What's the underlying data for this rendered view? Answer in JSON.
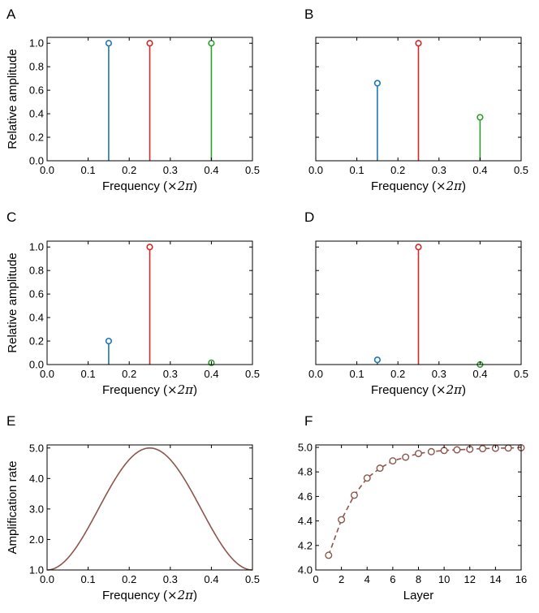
{
  "chart_data": [
    {
      "panel": "A",
      "type": "stem",
      "xlabel_prefix": "Frequency (",
      "xlabel_math": "×2π",
      "xlabel_suffix": ")",
      "ylabel": "Relative amplitude",
      "xlim": [
        0,
        0.5
      ],
      "ylim": [
        0,
        1.05
      ],
      "xticks": [
        "0.0",
        "0.1",
        "0.2",
        "0.3",
        "0.4",
        "0.5"
      ],
      "yticks": [
        "0.0",
        "0.2",
        "0.4",
        "0.6",
        "0.8",
        "1.0"
      ],
      "series": [
        {
          "name": "blue",
          "color": "#1f77b4",
          "x": 0.15,
          "y": 1.0
        },
        {
          "name": "red",
          "color": "#d62728",
          "x": 0.25,
          "y": 1.0
        },
        {
          "name": "green",
          "color": "#2ca02c",
          "x": 0.4,
          "y": 1.0
        }
      ]
    },
    {
      "panel": "B",
      "type": "stem",
      "xlabel_prefix": "Frequency (",
      "xlabel_math": "×2π",
      "xlabel_suffix": ")",
      "ylabel": "",
      "xlim": [
        0,
        0.5
      ],
      "ylim": [
        0,
        1.05
      ],
      "xticks": [
        "0.0",
        "0.1",
        "0.2",
        "0.3",
        "0.4",
        "0.5"
      ],
      "yticks": [],
      "series": [
        {
          "name": "blue",
          "color": "#1f77b4",
          "x": 0.15,
          "y": 0.66
        },
        {
          "name": "red",
          "color": "#d62728",
          "x": 0.25,
          "y": 1.0
        },
        {
          "name": "green",
          "color": "#2ca02c",
          "x": 0.4,
          "y": 0.37
        }
      ]
    },
    {
      "panel": "C",
      "type": "stem",
      "xlabel_prefix": "Frequency (",
      "xlabel_math": "×2π",
      "xlabel_suffix": ")",
      "ylabel": "Relative amplitude",
      "xlim": [
        0,
        0.5
      ],
      "ylim": [
        0,
        1.05
      ],
      "xticks": [
        "0.0",
        "0.1",
        "0.2",
        "0.3",
        "0.4",
        "0.5"
      ],
      "yticks": [
        "0.0",
        "0.2",
        "0.4",
        "0.6",
        "0.8",
        "1.0"
      ],
      "series": [
        {
          "name": "blue",
          "color": "#1f77b4",
          "x": 0.15,
          "y": 0.2
        },
        {
          "name": "red",
          "color": "#d62728",
          "x": 0.25,
          "y": 1.0
        },
        {
          "name": "green",
          "color": "#2ca02c",
          "x": 0.4,
          "y": 0.015
        }
      ]
    },
    {
      "panel": "D",
      "type": "stem",
      "xlabel_prefix": "Frequency (",
      "xlabel_math": "×2π",
      "xlabel_suffix": ")",
      "ylabel": "",
      "xlim": [
        0,
        0.5
      ],
      "ylim": [
        0,
        1.05
      ],
      "xticks": [
        "0.0",
        "0.1",
        "0.2",
        "0.3",
        "0.4",
        "0.5"
      ],
      "yticks": [],
      "series": [
        {
          "name": "blue",
          "color": "#1f77b4",
          "x": 0.15,
          "y": 0.04
        },
        {
          "name": "red",
          "color": "#d62728",
          "x": 0.25,
          "y": 1.0
        },
        {
          "name": "green",
          "color": "#2ca02c",
          "x": 0.4,
          "y": 0.0
        }
      ]
    },
    {
      "panel": "E",
      "type": "line",
      "xlabel_prefix": "Frequency (",
      "xlabel_math": "×2π",
      "xlabel_suffix": ")",
      "ylabel": "Amplification rate",
      "xlim": [
        0,
        0.5
      ],
      "ylim": [
        1.0,
        5.1
      ],
      "xticks": [
        "0.0",
        "0.1",
        "0.2",
        "0.3",
        "0.4",
        "0.5"
      ],
      "yticks": [
        "1.0",
        "2.0",
        "3.0",
        "4.0",
        "5.0"
      ],
      "color": "#8c564b",
      "function": "3 - 2*cos(4*pi*f)",
      "curve_min": 1.0,
      "curve_max": 5.0
    },
    {
      "panel": "F",
      "type": "line",
      "xlabel_prefix": "Layer",
      "xlabel_math": "",
      "xlabel_suffix": "",
      "ylabel": "",
      "xlim": [
        0,
        16
      ],
      "ylim": [
        4.0,
        5.02
      ],
      "xticks": [
        "0",
        "2",
        "4",
        "6",
        "8",
        "10",
        "12",
        "14",
        "16"
      ],
      "yticks": [
        "4.0",
        "4.2",
        "4.4",
        "4.6",
        "4.8",
        "5.0"
      ],
      "color": "#8c564b",
      "line_style": "dashed",
      "x": [
        1,
        2,
        3,
        4,
        5,
        6,
        7,
        8,
        9,
        10,
        11,
        12,
        13,
        14,
        15,
        16
      ],
      "y": [
        4.12,
        4.41,
        4.61,
        4.75,
        4.83,
        4.89,
        4.92,
        4.95,
        4.965,
        4.975,
        4.98,
        4.985,
        4.99,
        4.993,
        4.995,
        4.997
      ]
    }
  ]
}
